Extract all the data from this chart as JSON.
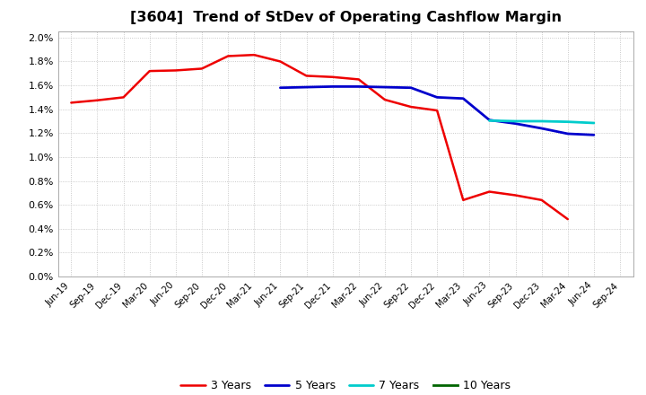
{
  "title": "[3604]  Trend of StDev of Operating Cashflow Margin",
  "title_fontsize": 11.5,
  "ylim": [
    0.0,
    0.0205
  ],
  "yticks": [
    0.0,
    0.002,
    0.004,
    0.006,
    0.008,
    0.01,
    0.012,
    0.014,
    0.016,
    0.018,
    0.02
  ],
  "ytick_labels": [
    "0.0%",
    "0.2%",
    "0.4%",
    "0.6%",
    "0.8%",
    "1.0%",
    "1.2%",
    "1.4%",
    "1.6%",
    "1.8%",
    "2.0%"
  ],
  "x_labels": [
    "Jun-19",
    "Sep-19",
    "Dec-19",
    "Mar-20",
    "Jun-20",
    "Sep-20",
    "Dec-20",
    "Mar-21",
    "Jun-21",
    "Sep-21",
    "Dec-21",
    "Mar-22",
    "Jun-22",
    "Sep-22",
    "Dec-22",
    "Mar-23",
    "Jun-23",
    "Sep-23",
    "Dec-23",
    "Mar-24",
    "Jun-24",
    "Sep-24"
  ],
  "series_3y": {
    "label": "3 Years",
    "color": "#ee0000",
    "x": [
      0,
      1,
      2,
      3,
      4,
      5,
      6,
      7,
      8,
      9,
      10,
      11,
      12,
      13,
      14,
      15,
      16,
      17,
      18,
      19
    ],
    "y": [
      0.01455,
      0.01475,
      0.015,
      0.0172,
      0.01725,
      0.0174,
      0.01845,
      0.01855,
      0.018,
      0.0168,
      0.0167,
      0.0165,
      0.0148,
      0.0142,
      0.0139,
      0.0064,
      0.0071,
      0.0068,
      0.0064,
      0.0048
    ]
  },
  "series_5y": {
    "label": "5 Years",
    "color": "#0000cc",
    "x": [
      8,
      9,
      10,
      11,
      12,
      13,
      14,
      15,
      16,
      17,
      18,
      19,
      20
    ],
    "y": [
      0.0158,
      0.01585,
      0.0159,
      0.0159,
      0.01585,
      0.0158,
      0.015,
      0.0149,
      0.0131,
      0.0128,
      0.0124,
      0.01195,
      0.01185
    ]
  },
  "series_7y": {
    "label": "7 Years",
    "color": "#00cccc",
    "x": [
      16,
      17,
      18,
      19,
      20
    ],
    "y": [
      0.01305,
      0.013,
      0.013,
      0.01295,
      0.01285
    ]
  },
  "series_10y": {
    "label": "10 Years",
    "color": "#006400",
    "x": [],
    "y": []
  },
  "background_color": "#ffffff",
  "grid_color": "#bbbbbb"
}
